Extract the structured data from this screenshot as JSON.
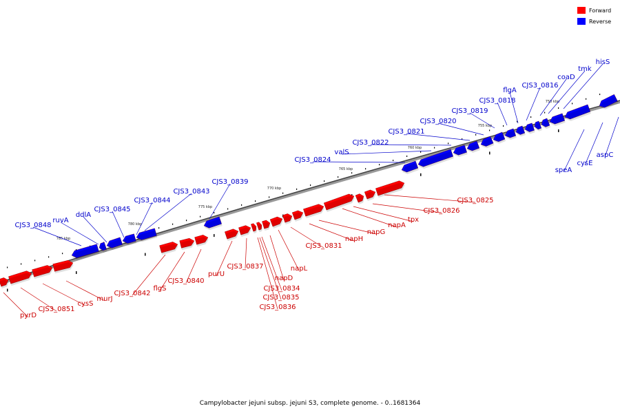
{
  "legend": {
    "forward": {
      "label": "Forward",
      "color": "#ff0000"
    },
    "reverse": {
      "label": "Reverse",
      "color": "#0000ff"
    }
  },
  "caption": "Campylobacter jejuni subsp. jejuni S3, complete genome. - 0..1681364",
  "ticks": [
    "785 kbp",
    "780 kbp",
    "775 kbp",
    "770 kbp",
    "765 kbp",
    "760 kbp",
    "755 kbp",
    "750 kbp"
  ],
  "forward_genes": [
    "pyrD",
    "CJS3_0851",
    "cysS",
    "murJ",
    "CJS3_0842",
    "flgS",
    "CJS3_0840",
    "purU",
    "CJS3_0837",
    "napD",
    "CJS3_0834",
    "CJS3_0835",
    "CJS3_0836",
    "napL",
    "CJS3_0831",
    "napH",
    "napG",
    "napA",
    "tpx",
    "CJS3_0826",
    "CJS3_0825"
  ],
  "reverse_genes": [
    "CJS3_0848",
    "ruvA",
    "ddlA",
    "CJS3_0845",
    "CJS3_0844",
    "CJS3_0843",
    "CJS3_0839",
    "CJS3_0824",
    "valS",
    "CJS3_0822",
    "CJS3_0821",
    "CJS3_0820",
    "CJS3_0819",
    "CJS3_0818",
    "flgA",
    "CJS3_0816",
    "coaD",
    "tmk",
    "hisS",
    "speA",
    "cysE",
    "aspC"
  ]
}
